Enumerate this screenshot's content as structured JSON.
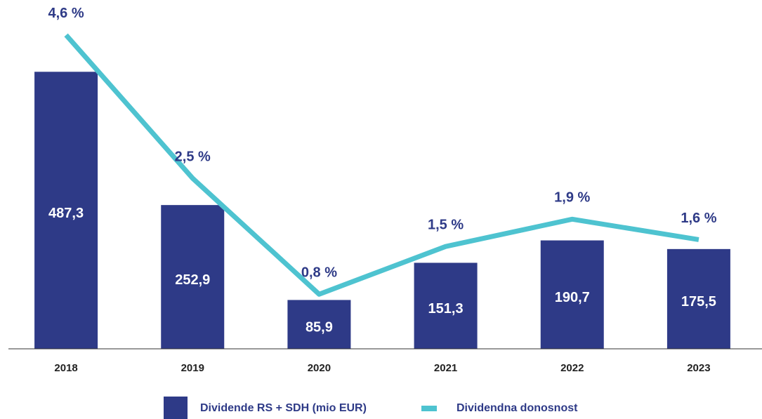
{
  "chart_data": {
    "type": "combo",
    "categories": [
      "2018",
      "2019",
      "2020",
      "2021",
      "2022",
      "2023"
    ],
    "series": [
      {
        "name": "Dividende RS + SDH (mio EUR)",
        "type": "bar",
        "color": "#2e3a87",
        "values": [
          487.3,
          252.9,
          85.9,
          151.3,
          190.7,
          175.5
        ],
        "value_labels": [
          "487,3",
          "252,9",
          "85,9",
          "151,3",
          "190,7",
          "175,5"
        ]
      },
      {
        "name": "Dividendna donosnost",
        "type": "line",
        "axis": "y2",
        "color": "#4ec3d0",
        "values": [
          4.6,
          2.5,
          0.8,
          1.5,
          1.9,
          1.6
        ],
        "value_labels": [
          "4,6 %",
          "2,5 %",
          "0,8 %",
          "1,5 %",
          "1,9 %",
          "1,6 %"
        ]
      }
    ],
    "ylim": [
      0,
      600
    ],
    "y2lim": [
      0,
      5
    ],
    "legend": "bottom"
  }
}
